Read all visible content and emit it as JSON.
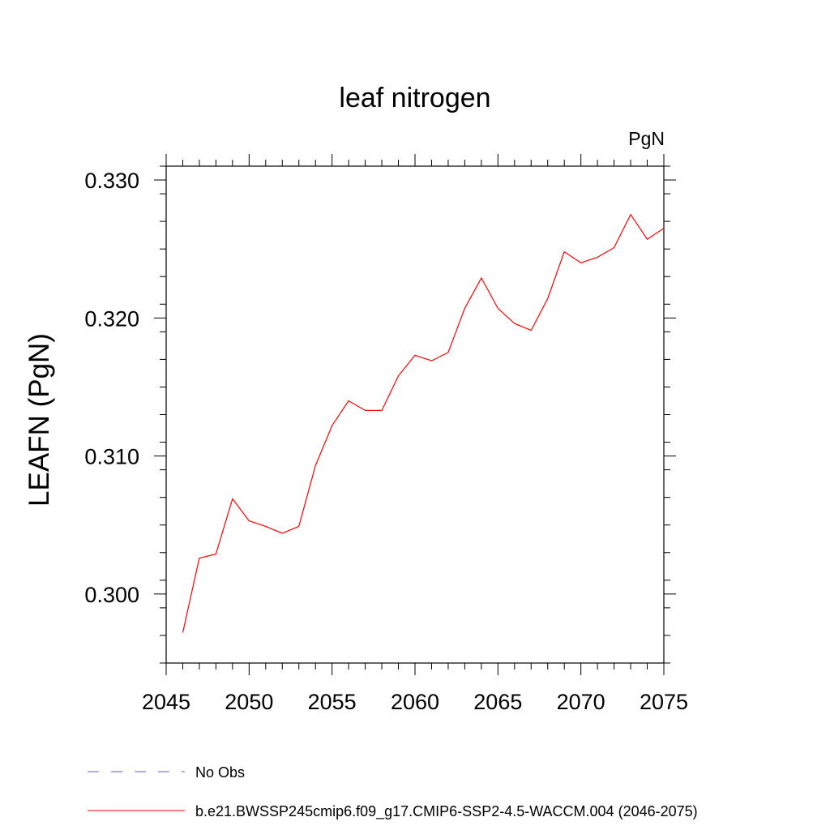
{
  "chart_data": {
    "type": "line",
    "title": "leaf nitrogen",
    "units_label": "PgN",
    "xlabel": "",
    "ylabel": "LEAFN  (PgN)",
    "xlim": [
      2045,
      2075
    ],
    "ylim": [
      0.295,
      0.331
    ],
    "x_ticks": [
      2045,
      2050,
      2055,
      2060,
      2065,
      2070,
      2075
    ],
    "x_tick_labels": [
      "2045",
      "2050",
      "2055",
      "2060",
      "2065",
      "2070",
      "2075"
    ],
    "y_ticks": [
      0.3,
      0.31,
      0.32,
      0.33
    ],
    "y_tick_labels": [
      "0.300",
      "0.310",
      "0.320",
      "0.330"
    ],
    "x_minor_step": 1,
    "y_minor_step": 0.002,
    "grid": false,
    "legend_position": "bottom",
    "legend": [
      {
        "label": "No Obs",
        "color": "#6a5acd",
        "style": "dashed"
      },
      {
        "label": "b.e21.BWSSP245cmip6.f09_g17.CMIP6-SSP2-4.5-WACCM.004 (2046-2075)",
        "color": "#ff0000",
        "style": "solid"
      }
    ],
    "series": [
      {
        "name": "b.e21.BWSSP245cmip6.f09_g17.CMIP6-SSP2-4.5-WACCM.004 (2046-2075)",
        "color": "#ff0000",
        "x": [
          2046,
          2047,
          2048,
          2049,
          2050,
          2051,
          2052,
          2053,
          2054,
          2055,
          2056,
          2057,
          2058,
          2059,
          2060,
          2061,
          2062,
          2063,
          2064,
          2065,
          2066,
          2067,
          2068,
          2069,
          2070,
          2071,
          2072,
          2073,
          2074,
          2075
        ],
        "values": [
          0.2972,
          0.3026,
          0.3029,
          0.3069,
          0.3053,
          0.3049,
          0.3044,
          0.3049,
          0.3093,
          0.3122,
          0.314,
          0.3133,
          0.3133,
          0.3158,
          0.3173,
          0.3169,
          0.3175,
          0.3207,
          0.3229,
          0.3207,
          0.3196,
          0.3191,
          0.3214,
          0.3248,
          0.324,
          0.3244,
          0.3251,
          0.3275,
          0.3257,
          0.3265
        ]
      }
    ]
  }
}
